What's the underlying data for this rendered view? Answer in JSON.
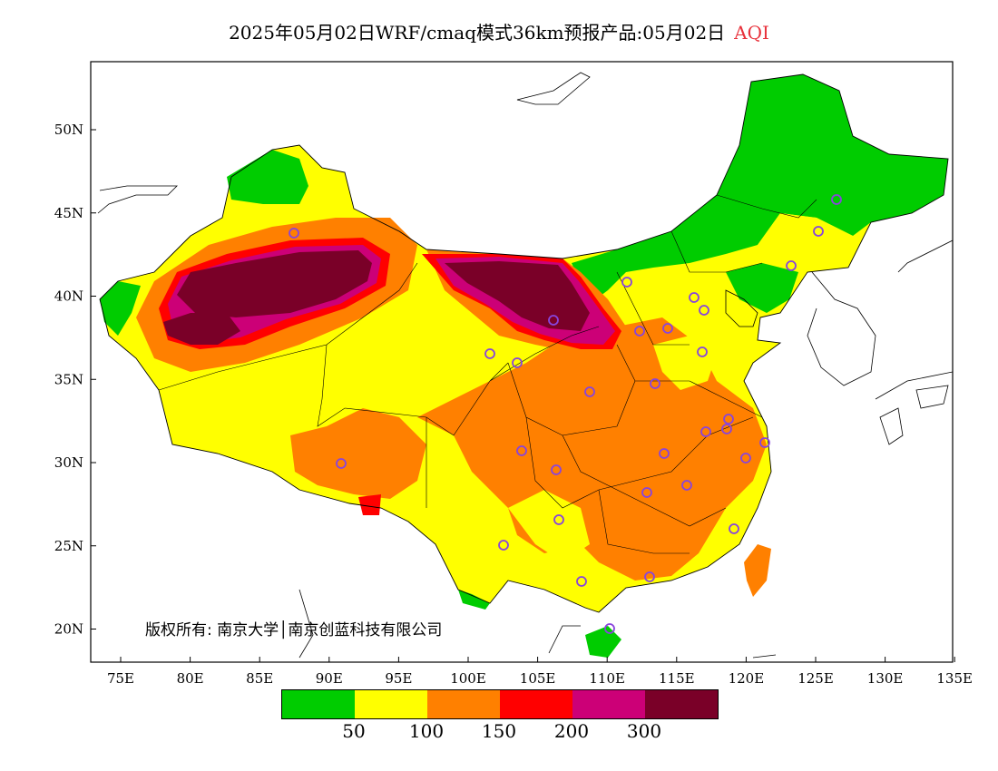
{
  "title": {
    "main": "2025年05月02日WRF/cmaq模式36km预报产品:05月02日",
    "variable": "AQI"
  },
  "copyright": "版权所有: 南京大学│南京创蓝科技有限公司",
  "axes": {
    "x_ticks": [
      "75E",
      "80E",
      "85E",
      "90E",
      "95E",
      "100E",
      "105E",
      "110E",
      "115E",
      "120E",
      "125E",
      "130E",
      "135E"
    ],
    "y_ticks": [
      "50N",
      "45N",
      "40N",
      "35N",
      "30N",
      "25N",
      "20N"
    ],
    "lon_range": [
      73,
      135
    ],
    "lat_range": [
      18,
      54
    ]
  },
  "legend": {
    "colors": [
      "#00cc00",
      "#ffff00",
      "#ff8000",
      "#ff0000",
      "#cc0077",
      "#7a0028"
    ],
    "labels": [
      "50",
      "100",
      "150",
      "200",
      "300"
    ]
  },
  "colors": {
    "good": "#00cc00",
    "moderate": "#ffff00",
    "sensitive": "#ff8000",
    "unhealthy": "#ff0000",
    "very_unhealthy": "#cc0077",
    "hazardous": "#7a0028",
    "station_marker": "#8844dd"
  }
}
